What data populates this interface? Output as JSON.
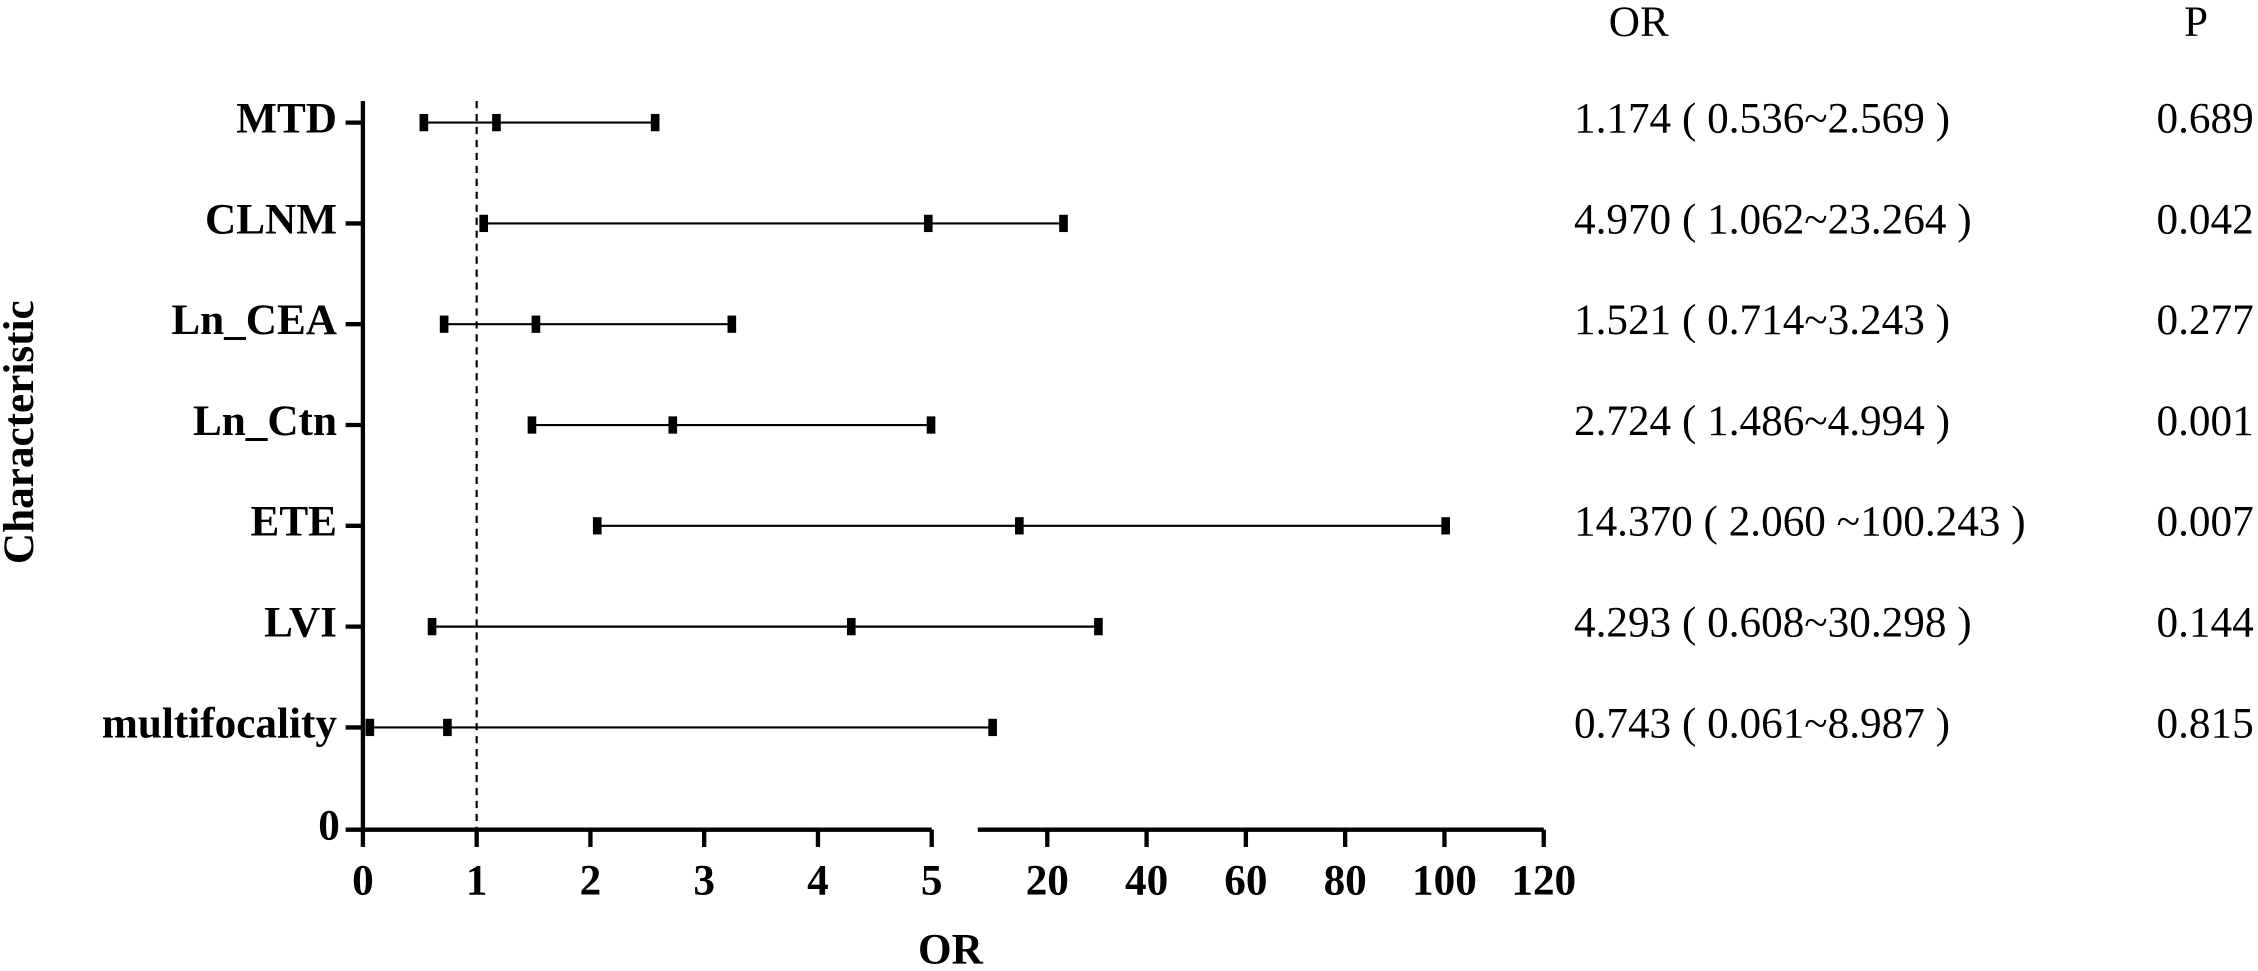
{
  "chart_data": {
    "type": "forest",
    "x_label": "OR",
    "y_label": "Characteristic",
    "column_headers": [
      "OR",
      "P"
    ],
    "categories": [
      "MTD",
      "CLNM",
      "Ln_CEA",
      "Ln_Ctn",
      "ETE",
      "LVI",
      "multifocality"
    ],
    "or": [
      1.174,
      4.97,
      1.521,
      2.724,
      14.37,
      4.293,
      0.743
    ],
    "lower": [
      0.536,
      1.062,
      0.714,
      1.486,
      2.06,
      0.608,
      0.061
    ],
    "upper": [
      2.569,
      23.264,
      3.243,
      4.994,
      100.243,
      30.298,
      8.987
    ],
    "or_labels": [
      "1.174 ( 0.536~2.569 )",
      "4.970 ( 1.062~23.264 )",
      "1.521 ( 0.714~3.243 )",
      "2.724 ( 1.486~4.994 )",
      "14.370 ( 2.060 ~100.243 )",
      "4.293 ( 0.608~30.298 )",
      "0.743 ( 0.061~8.987 )"
    ],
    "p": [
      0.689,
      0.042,
      0.277,
      0.001,
      0.007,
      0.144,
      0.815
    ],
    "x_segments": [
      {
        "xlim": [
          0,
          5
        ],
        "xticks": [
          0,
          1,
          2,
          3,
          4,
          5
        ]
      },
      {
        "xlim": [
          6,
          120
        ],
        "xticks": [
          20,
          40,
          60,
          80,
          100,
          120
        ]
      }
    ],
    "yticks": [
      0
    ],
    "reference_line": 1,
    "color": "#000000"
  }
}
